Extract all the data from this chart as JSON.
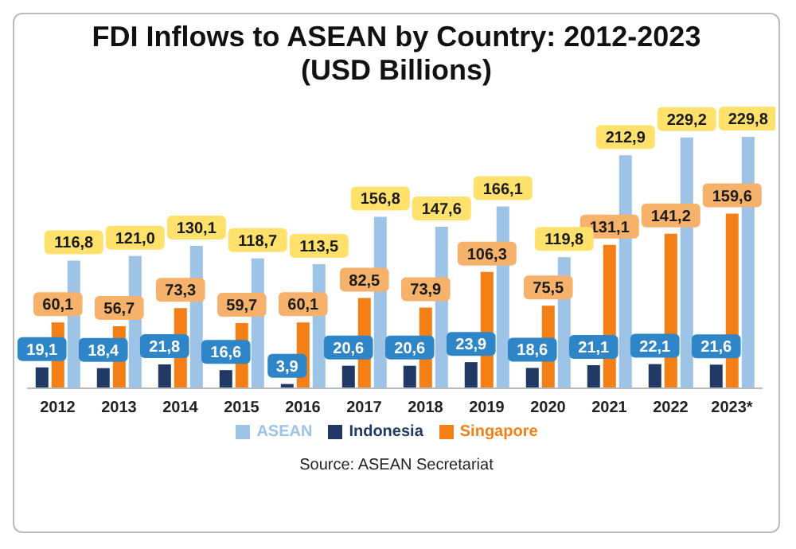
{
  "chart_data": {
    "type": "bar",
    "title": "FDI Inflows to ASEAN by Country: 2012-2023",
    "subtitle": "(USD Billions)",
    "categories": [
      "2012",
      "2013",
      "2014",
      "2015",
      "2016",
      "2017",
      "2018",
      "2019",
      "2020",
      "2021",
      "2022",
      "2023*"
    ],
    "series": [
      {
        "name": "Indonesia",
        "color": "#1f3864",
        "values": [
          19.1,
          18.4,
          21.8,
          16.6,
          3.9,
          20.6,
          20.6,
          23.9,
          18.6,
          21.1,
          22.1,
          21.6
        ],
        "value_labels": [
          "19,1",
          "18,4",
          "21,8",
          "16,6",
          "3,9",
          "20,6",
          "20,6",
          "23,9",
          "18,6",
          "21,1",
          "22,1",
          "21,6"
        ]
      },
      {
        "name": "Singapore",
        "color": "#f57f17",
        "values": [
          60.1,
          56.7,
          73.3,
          59.7,
          60.1,
          82.5,
          73.9,
          106.3,
          75.5,
          131.1,
          141.2,
          159.6
        ],
        "value_labels": [
          "60,1",
          "56,7",
          "73,3",
          "59,7",
          "60,1",
          "82,5",
          "73,9",
          "106,3",
          "75,5",
          "131,1",
          "141,2",
          "159,6"
        ]
      },
      {
        "name": "ASEAN",
        "color": "#9dc3e6",
        "values": [
          116.8,
          121.0,
          130.1,
          118.7,
          113.5,
          156.8,
          147.6,
          166.1,
          119.8,
          212.9,
          229.2,
          229.8
        ],
        "value_labels": [
          "116,8",
          "121,0",
          "130,1",
          "118,7",
          "113,5",
          "156,8",
          "147,6",
          "166,1",
          "119,8",
          "212,9",
          "229,2",
          "229,8"
        ]
      }
    ],
    "legend": "bottom",
    "grid": false,
    "annotations": [
      "Source: ASEAN Secretariat"
    ]
  }
}
